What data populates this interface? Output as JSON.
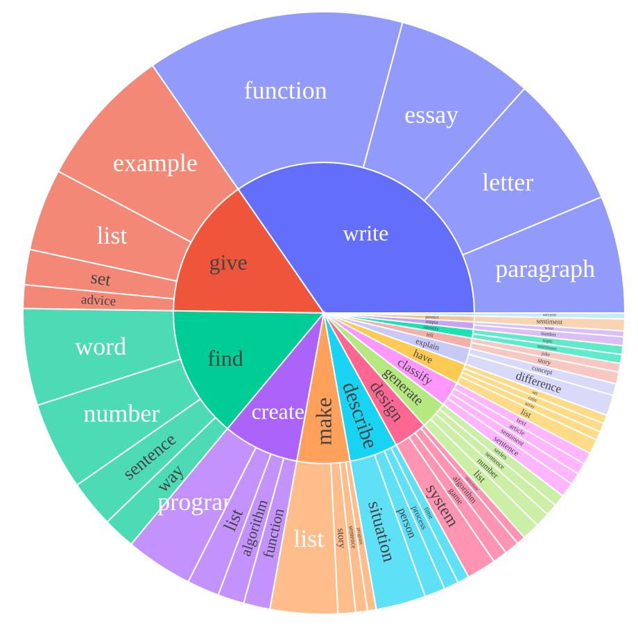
{
  "chart_data": {
    "type": "sunburst",
    "colors": {
      "write": "#636EFA",
      "give": "#EF553B",
      "find": "#00CC96",
      "create": "#AB63FA",
      "make": "#FFA15A",
      "describe": "#19D3F3",
      "design": "#FF6692",
      "generate": "#B6E880",
      "classify": "#FF97FF",
      "have": "#FECB52",
      "explain": "#C9C9F8",
      "tell": "#F4B0A6",
      "identify": "#19E3B2",
      "output": "#C8A2F5",
      "predict": "#F5C195",
      "small1": "#A9E2F6",
      "small2": "#F9B5C6"
    },
    "nodes": [
      {
        "label": "write",
        "color": "write",
        "children": [
          {
            "label": "paragraph",
            "value": 40
          },
          {
            "label": "letter",
            "value": 45
          },
          {
            "label": "essay",
            "value": 47
          },
          {
            "label": "function",
            "value": 88
          }
        ]
      },
      {
        "label": "give",
        "color": "give",
        "children": [
          {
            "label": "example",
            "value": 48
          },
          {
            "label": "list",
            "value": 28
          },
          {
            "label": "set",
            "value": 12
          },
          {
            "label": "advice",
            "value": 8
          }
        ]
      },
      {
        "label": "find",
        "color": "find",
        "children": [
          {
            "label": "word",
            "value": 33
          },
          {
            "label": "number",
            "value": 30
          },
          {
            "label": "sentence",
            "value": 16
          },
          {
            "label": "way",
            "value": 11
          }
        ]
      },
      {
        "label": "create",
        "color": "create",
        "children": [
          {
            "label": "program",
            "value": 23
          },
          {
            "label": "list",
            "value": 11
          },
          {
            "label": "algorithm",
            "value": 9
          },
          {
            "label": "function",
            "value": 9
          }
        ]
      },
      {
        "label": "make",
        "color": "make",
        "children": [
          {
            "label": "list",
            "value": 23
          },
          {
            "label": "story",
            "value": 6
          },
          {
            "label": "sentence",
            "value": 4
          },
          {
            "label": "program",
            "value": 3
          }
        ]
      },
      {
        "label": "describe",
        "color": "describe",
        "children": [
          {
            "label": "situation",
            "value": 17
          },
          {
            "label": "person",
            "value": 7
          },
          {
            "label": "process",
            "value": 5
          },
          {
            "label": "time",
            "value": 4
          }
        ]
      },
      {
        "label": "design",
        "color": "design",
        "children": [
          {
            "label": "system",
            "value": 10
          },
          {
            "label": "game",
            "value": 5
          },
          {
            "label": "algorithm",
            "value": 5
          },
          {
            "label": "structure",
            "value": 3
          }
        ]
      },
      {
        "label": "generate",
        "color": "generate",
        "children": [
          {
            "label": "list",
            "value": 6
          },
          {
            "label": "number",
            "value": 5
          },
          {
            "label": "sentence",
            "value": 4
          },
          {
            "label": "series",
            "value": 4
          }
        ]
      },
      {
        "label": "classify",
        "color": "classify",
        "children": [
          {
            "label": "sentence",
            "value": 5
          },
          {
            "label": "sentiment",
            "value": 4
          },
          {
            "label": "article",
            "value": 4
          },
          {
            "label": "text",
            "value": 4
          }
        ]
      },
      {
        "label": "have",
        "color": "have",
        "children": [
          {
            "label": "list",
            "value": 5
          },
          {
            "label": "array",
            "value": 3
          },
          {
            "label": "coin",
            "value": 3
          },
          {
            "label": "set",
            "value": 3
          }
        ]
      },
      {
        "label": "explain",
        "color": "explain",
        "children": [
          {
            "label": "difference",
            "value": 7
          },
          {
            "label": "concept",
            "value": 4
          }
        ]
      },
      {
        "label": "tell",
        "color": "tell",
        "children": [
          {
            "label": "story",
            "value": 4
          },
          {
            "label": "joke",
            "value": 3
          }
        ]
      },
      {
        "label": "identify",
        "color": "identify",
        "children": [
          {
            "label": "sentiment",
            "value": 3
          },
          {
            "label": "topic",
            "value": 3
          }
        ]
      },
      {
        "label": "output",
        "color": "output",
        "children": [
          {
            "label": "number",
            "value": 3
          },
          {
            "label": "word",
            "value": 2
          }
        ]
      },
      {
        "label": "predict",
        "color": "predict",
        "children": [
          {
            "label": "sentiment",
            "value": 4
          }
        ]
      },
      {
        "label": "",
        "color": "small1",
        "children": [
          {
            "label": "sarcasm",
            "value": 2
          }
        ]
      }
    ]
  }
}
